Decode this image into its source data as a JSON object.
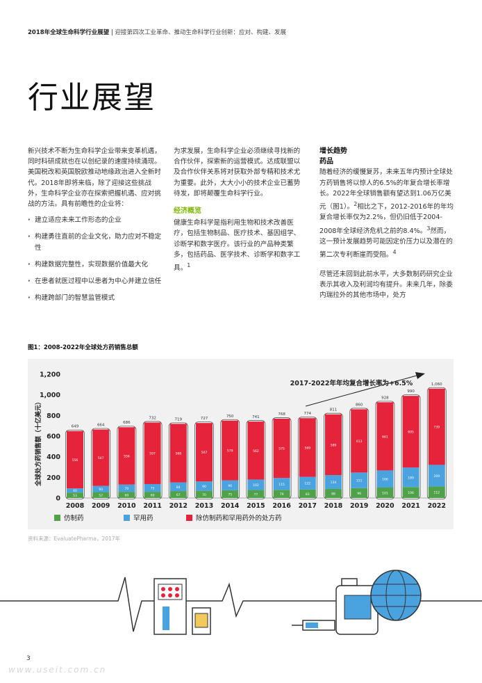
{
  "header": {
    "report": "2018年全球生命科学行业展望",
    "separator": "|",
    "subtitle": "迎接第四次工业革命、推动生命科学行业创新：应对、构建、发展"
  },
  "page_title": "行业展望",
  "column1": {
    "para1": "新兴技术不断为生命科学企业带来变革机遇，同时科研成就也在以创纪录的速度持续涌现。美国税改和英国脱欧推动地缘政治进入全新时代。2018年即将来临，除了迎接这些挑战外，生命科学企业亦在探索把握机遇、应对挑战的方法。具有前瞻性的企业将：",
    "bullets": [
      "建立适应未来工作形态的企业",
      "构建勇往直前的企业文化，助力应对不稳定性",
      "构建数据完整性，实现数据价值最大化",
      "在患者就医过程中以患者为中心并建立信任",
      "构建跨部门的智慧监管模式"
    ]
  },
  "column2": {
    "para1": "为求发展，生命科学企业必须继续寻找新的合作伙伴，探索新的运营模式。达成联盟以及合作伙伴关系将对获取外部专精和技术尤为重要。此外，大大小小的技术企业已蓄势待发，即将颠覆生命科学行业。",
    "heading": "经济概览",
    "para2": "健康生命科学是指利用生物和技术改善医疗，包括生物制品、医疗技术、基因组学、诊断学和数字医疗。该行业的产品种类繁多，包括药品、医学技术、诊断学和数字工具。",
    "footnote": "1"
  },
  "column3": {
    "heading": "增长趋势",
    "subheading": "药品",
    "para1_a": "随着经济的缓慢复苏，未来五年内预计全球处方药销售将以惊人的6.5%的年复合增长率增长。2022年全球销售额有望达到1.06万亿美元（图1）。",
    "fn2": "2",
    "para1_b": "相比之下，2012-2016年的年均复合增长率仅为2.2%，但仍旧低于2004-2008年全球经济危机之前的8.4%。",
    "fn3": "3",
    "para1_c": "然而，这一预计发展趋势可能因定价压力以及潜在的第二次专利断崖而受阻。",
    "fn4": "4",
    "para2": "尽管还未回到此前水平，大多数制药研究企业表示其收入及利润均有提升。未来几年，除委内瑞拉外的其他市场中，处方"
  },
  "figure_caption": "图1：2008-2022年全球处方药销售总额",
  "source": "资料来源：EvaluatePharma，2017年",
  "page_number": "3",
  "watermark": "www.useit.com.cn",
  "colors": {
    "generic": "#4fa14a",
    "orphan": "#4aa3df",
    "other": "#e5243b",
    "accent_green": "#7ab800"
  },
  "chart_data": {
    "type": "bar",
    "stacked": true,
    "title": "",
    "annotation": "2017-2022年年均复合增长率为+6.5%",
    "ylabel": "全球处方药销售额（十亿美元）",
    "xlabel": "",
    "ylim": [
      0,
      1200
    ],
    "yticks": [
      "0",
      "200",
      "400",
      "600",
      "800",
      "1,000",
      "1,200"
    ],
    "grid": false,
    "legend_position": "bottom-left",
    "categories": [
      "2008",
      "2009",
      "2010",
      "2011",
      "2012",
      "2013",
      "2014",
      "2015",
      "2016",
      "2017",
      "2018",
      "2019",
      "2020",
      "2021",
      "2022"
    ],
    "totals": [
      649,
      664,
      686,
      732,
      719,
      727,
      750,
      741,
      768,
      774,
      811,
      860,
      928,
      990,
      1060
    ],
    "total_labels": [
      "649",
      "664",
      "686",
      "732",
      "719",
      "727",
      "750",
      "741",
      "768",
      "774",
      "811",
      "860",
      "928",
      "990",
      "1,060"
    ],
    "series": [
      {
        "name": "仿制药",
        "color": "#4fa14a",
        "values": [
          53,
          57,
          60,
          60,
          67,
          70,
          75,
          77,
          79,
          83,
          88,
          96,
          101,
          106,
          112
        ]
      },
      {
        "name": "罕用药",
        "color": "#4aa3df",
        "values": [
          40,
          60,
          70,
          75,
          84,
          90,
          96,
          102,
          115,
          122,
          134,
          151,
          166,
          189,
          209
        ]
      },
      {
        "name": "除仿制药和罕用药外的处方药",
        "color": "#e5243b",
        "values": [
          556,
          547,
          556,
          597,
          568,
          567,
          579,
          562,
          575,
          569,
          589,
          613,
          661,
          695,
          739
        ]
      }
    ]
  }
}
